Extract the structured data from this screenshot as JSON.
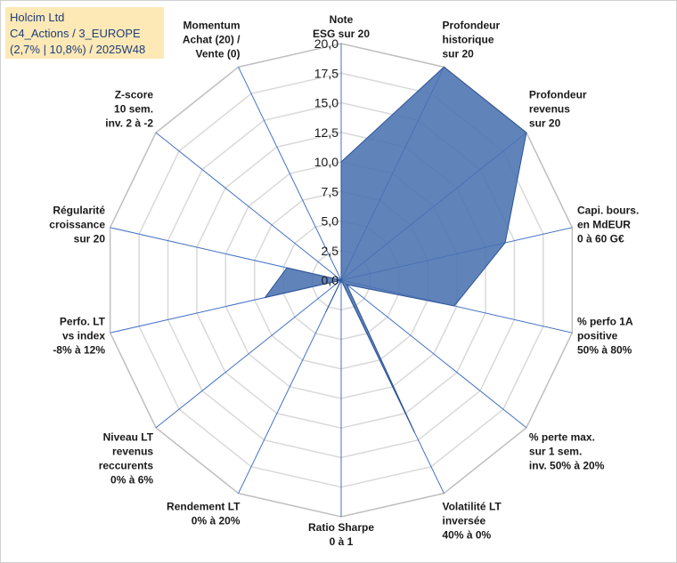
{
  "header": {
    "line1": "Holcim Ltd",
    "line2": "C4_Actions / 3_EUROPE",
    "line3": "(2,7% | 10,8%) / 2025W48"
  },
  "colors": {
    "fill": "#4a72b0",
    "stroke": "#2f5597",
    "grid": "#d9d9d9",
    "spoke": "#4472c4",
    "title_bg": "#fde9b6"
  },
  "chart_data": {
    "type": "radar",
    "rmin": 0,
    "rmax": 20,
    "tick_step": 2.5,
    "tick_labels": [
      "0,0",
      "2,5",
      "5,0",
      "7,5",
      "10,0",
      "12,5",
      "15,0",
      "17,5",
      "20,0"
    ],
    "axes": [
      {
        "label": [
          "Note",
          "ESG sur 20"
        ],
        "value": 10.0
      },
      {
        "label": [
          "Profondeur",
          "historique",
          "sur 20"
        ],
        "value": 20.0
      },
      {
        "label": [
          "Profondeur",
          "revenus",
          "sur 20"
        ],
        "value": 20.0
      },
      {
        "label": [
          "Capi. bours.",
          "en MdEUR",
          "0 à 60 G€"
        ],
        "value": 14.2
      },
      {
        "label": [
          "% perfo 1A",
          "positive",
          "50% à 80%"
        ],
        "value": 9.8
      },
      {
        "label": [
          "% perte max.",
          "sur 1 sem.",
          "inv. 50% à 20%"
        ],
        "value": 0.6
      },
      {
        "label": [
          "Volatilité LT",
          "inversée",
          "40% à 0%"
        ],
        "value": 14.3
      },
      {
        "label": [
          "Ratio Sharpe",
          "0 à 1"
        ],
        "value": 0.0
      },
      {
        "label": [
          "Rendement LT",
          "0% à 20%"
        ],
        "value": 3.0
      },
      {
        "label": [
          "Niveau LT",
          "revenus",
          "reccurents",
          "0% à 6%"
        ],
        "value": 0.0
      },
      {
        "label": [
          "Perfo. LT",
          "vs index",
          "-8% à 12%"
        ],
        "value": 6.6
      },
      {
        "label": [
          "Régularité",
          "croissance",
          "sur 20"
        ],
        "value": 4.7
      },
      {
        "label": [
          "Z-score",
          "10 sem.",
          "inv. 2 à -2"
        ],
        "value": 0.0
      },
      {
        "label": [
          "Momentum",
          "Achat (20) /",
          "Vente (0)"
        ],
        "value": 0.0
      }
    ]
  }
}
